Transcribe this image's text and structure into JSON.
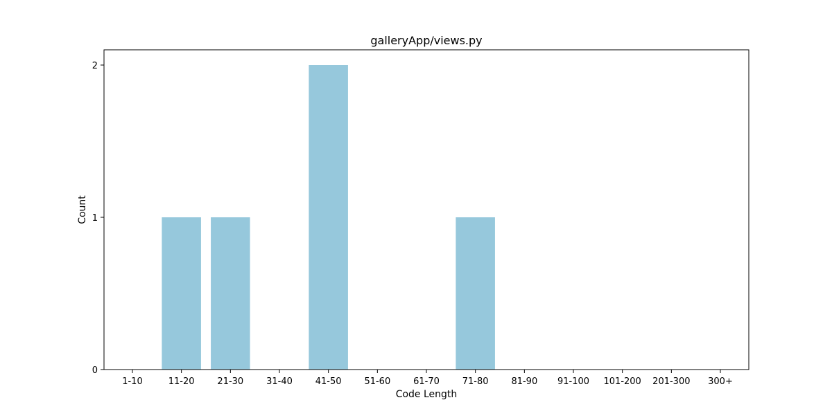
{
  "chart_data": {
    "type": "bar",
    "title": "galleryApp/views.py",
    "xlabel": "Code Length",
    "ylabel": "Count",
    "categories": [
      "1-10",
      "11-20",
      "21-30",
      "31-40",
      "41-50",
      "51-60",
      "61-70",
      "71-80",
      "81-90",
      "91-100",
      "101-200",
      "201-300",
      "300+"
    ],
    "values": [
      0,
      1,
      1,
      0,
      2,
      0,
      0,
      1,
      0,
      0,
      0,
      0,
      0
    ],
    "yticks": [
      0,
      1,
      2
    ],
    "ylim": [
      0,
      2.1
    ],
    "grid": false,
    "bar_color": "#96c8dc"
  }
}
